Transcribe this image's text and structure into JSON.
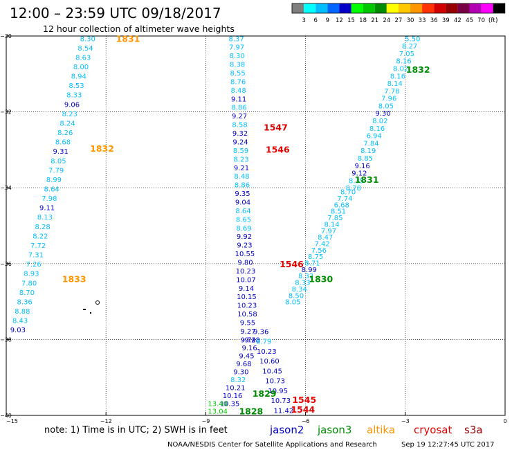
{
  "header": {
    "title": "12:00 – 23:59 UTC 09/18/2017",
    "subtitle": "12 hour collection of altimeter wave heights"
  },
  "colorbar": {
    "colors": [
      "#7f7f7f",
      "#00ffff",
      "#00bfff",
      "#0066ff",
      "#0000c8",
      "#00ff00",
      "#00c800",
      "#008c00",
      "#ffff00",
      "#ffc800",
      "#ff9600",
      "#ff3200",
      "#d20000",
      "#960000",
      "#7a0046",
      "#b400b4",
      "#ff00ff",
      "#000000"
    ],
    "labels": [
      "3",
      "6",
      "9",
      "12",
      "15",
      "18",
      "21",
      "24",
      "27",
      "30",
      "33",
      "36",
      "39",
      "42",
      "45",
      "70",
      "(ft)"
    ]
  },
  "footer": {
    "note": "note:  1) Time is in UTC; 2) SWH is in feet",
    "legend": [
      {
        "name": "jason2",
        "color": "#0000c8"
      },
      {
        "name": "jason3",
        "color": "#008c00"
      },
      {
        "name": "altika",
        "color": "#ff9600"
      },
      {
        "name": "cryosat",
        "color": "#e00000"
      },
      {
        "name": "s3a",
        "color": "#960000"
      }
    ],
    "credit": "NOAA/NESDIS Center for Satellite Applications and Research",
    "timestamp": "Sep 19 12:27:45 UTC 2017"
  },
  "chart_data": {
    "type": "scatter",
    "xlim": [
      -15,
      0
    ],
    "ylim": [
      -40,
      -30
    ],
    "x_ticks": [
      -15,
      -12,
      -9,
      -6,
      -3,
      0
    ],
    "y_ticks": [
      -30,
      -32,
      -34,
      -36,
      -38,
      -40
    ],
    "x_tick_labels": [
      "−15",
      "−12",
      "−9",
      "−6",
      "−3",
      "0"
    ],
    "y_tick_labels": [
      "−30",
      "−32",
      "−34",
      "−36",
      "−38",
      "−40"
    ],
    "grid": true,
    "value_colors": {
      "light": "#00bfff",
      "mid": "#0066ff",
      "dark": "#0000c8",
      "green": "#00c800"
    },
    "tracks": [
      {
        "name": "altika",
        "pass": "1831",
        "pass_label_pos": [
          -11.7,
          -30.06
        ],
        "pass_color": "#ff9600",
        "start": [
          -12.55,
          -30.06
        ],
        "end": [
          -14.65,
          -37.74
        ],
        "values": [
          "8.30",
          "8.54",
          "8.63",
          "8.00",
          "8.94",
          "8.53",
          "8.33",
          "9.06",
          "8.23",
          "8.24",
          "8.26",
          "8.68",
          "9.31",
          "8.05",
          "7.79",
          "8.99",
          "8.64",
          "7.98",
          "9.11",
          "8.13",
          "8.28",
          "8.22",
          "7.72",
          "7.31",
          "7.26",
          "8.93",
          "7.80",
          "8.70",
          "8.36",
          "8.88",
          "8.43",
          "9.03"
        ],
        "colors": [
          "light",
          "light",
          "light",
          "light",
          "light",
          "light",
          "light",
          "dark",
          "light",
          "light",
          "light",
          "light",
          "dark",
          "light",
          "light",
          "light",
          "light",
          "light",
          "dark",
          "light",
          "light",
          "light",
          "light",
          "light",
          "light",
          "light",
          "light",
          "light",
          "light",
          "light",
          "light",
          "dark"
        ]
      },
      {
        "name": "altika",
        "pass": "1832",
        "pass_label_pos": [
          -12.48,
          -32.96
        ],
        "pass_color": "#ff9600",
        "start": null,
        "end": null,
        "values": [],
        "colors": []
      },
      {
        "name": "altika",
        "pass": "1833",
        "pass_label_pos": [
          -13.32,
          -36.4
        ],
        "pass_color": "#ff9600",
        "start": null,
        "end": null,
        "values": [],
        "colors": []
      },
      {
        "name": "jason2",
        "pass": "",
        "start": [
          -8.08,
          -30.06
        ],
        "end": [
          -7.72,
          -38.0
        ],
        "values": [
          "8.37",
          "7.97",
          "8.30",
          "8.38",
          "8.55",
          "8.76",
          "8.48",
          "9.11",
          "8.86",
          "9.27",
          "8.58",
          "9.32",
          "9.24",
          "8.59",
          "8.23",
          "9.21",
          "8.48",
          "8.86",
          "9.35",
          "9.04",
          "8.64",
          "8.65",
          "8.69",
          "9.92",
          "9.23",
          "10.55",
          "9.80",
          "10.23",
          "10.07",
          "9.14",
          "10.15",
          "10.23",
          "10.58",
          "9.55",
          "9.27",
          "9.74"
        ],
        "colors": [
          "light",
          "light",
          "light",
          "light",
          "light",
          "light",
          "light",
          "dark",
          "light",
          "dark",
          "light",
          "dark",
          "dark",
          "light",
          "light",
          "dark",
          "light",
          "light",
          "dark",
          "dark",
          "light",
          "light",
          "light",
          "dark",
          "dark",
          "dark",
          "dark",
          "dark",
          "dark",
          "dark",
          "dark",
          "dark",
          "dark",
          "dark",
          "dark",
          "dark"
        ]
      },
      {
        "name": "jason2",
        "pass": "",
        "start": [
          -7.6,
          -38.0
        ],
        "end": [
          -8.28,
          -39.68
        ],
        "values": [
          "9.28",
          "9.16",
          "9.45",
          "9.68",
          "9.30",
          "8.32",
          "10.21",
          "10.16",
          "10.35"
        ],
        "colors": [
          "dark",
          "dark",
          "dark",
          "dark",
          "dark",
          "light",
          "dark",
          "dark",
          "dark"
        ]
      },
      {
        "name": "jason2",
        "pass": "",
        "start": [
          -7.34,
          -37.78
        ],
        "end": [
          -6.66,
          -39.86
        ],
        "values": [
          "9.36",
          "8.79",
          "10.23",
          "10.60",
          "10.45",
          "10.73",
          "10.95",
          "10.73",
          "11.42"
        ],
        "colors": [
          "dark",
          "light",
          "dark",
          "dark",
          "dark",
          "dark",
          "dark",
          "dark",
          "dark"
        ]
      },
      {
        "name": "jason2",
        "pass": "",
        "start": [
          -8.64,
          -39.88
        ],
        "end": [
          -8.64,
          -39.88
        ],
        "values": [
          "13.04"
        ],
        "colors": [
          "green"
        ]
      },
      {
        "name": "jason2",
        "pass": "",
        "start": [
          -8.64,
          -39.68
        ],
        "end": [
          -8.64,
          -39.68
        ],
        "values": [
          "13.40"
        ],
        "colors": [
          "green"
        ]
      },
      {
        "name": "jason3",
        "pass": "1832",
        "pass_label_pos": [
          -2.98,
          -30.88
        ],
        "pass_color": "#008c00",
        "start": [
          -2.78,
          -30.06
        ],
        "end": [
          -4.56,
          -34.0
        ],
        "values": [
          "5.50",
          "8.27",
          "7.05",
          "8.16",
          "8.02",
          "8.16",
          "8.14",
          "7.78",
          "7.96",
          "8.05",
          "9.30",
          "8.02",
          "8.16",
          "6.94",
          "7.84",
          "8.19",
          "8.85",
          "9.16",
          "9.12",
          "8.35",
          "8.78"
        ],
        "colors": [
          "light",
          "light",
          "light",
          "light",
          "light",
          "light",
          "light",
          "light",
          "light",
          "light",
          "dark",
          "light",
          "light",
          "light",
          "light",
          "light",
          "light",
          "dark",
          "dark",
          "light",
          "light"
        ]
      },
      {
        "name": "jason3",
        "pass": "1831",
        "pass_label_pos": [
          -4.52,
          -33.78
        ],
        "pass_color": "#008c00",
        "start": [
          -4.72,
          -34.1
        ],
        "end": [
          -6.38,
          -37.0
        ],
        "values": [
          "8.70",
          "7.74",
          "6.68",
          "8.51",
          "7.85",
          "8.14",
          "7.97",
          "8.47",
          "7.42",
          "7.56",
          "8.75",
          "8.71",
          "8.99",
          "8.32",
          "8.33",
          "8.34",
          "8.50",
          "8.05"
        ],
        "colors": [
          "light",
          "light",
          "light",
          "light",
          "light",
          "light",
          "light",
          "light",
          "light",
          "light",
          "light",
          "light",
          "dark",
          "light",
          "light",
          "light",
          "light",
          "light"
        ]
      },
      {
        "name": "jason3",
        "pass": "1830",
        "pass_label_pos": [
          -5.9,
          -36.4
        ],
        "pass_color": "#008c00",
        "start": null,
        "end": null,
        "values": [],
        "colors": []
      },
      {
        "name": "jason3",
        "pass": "1829",
        "pass_label_pos": [
          -7.6,
          -39.42
        ],
        "pass_color": "#008c00",
        "start": null,
        "end": null,
        "values": [],
        "colors": []
      },
      {
        "name": "jason3",
        "pass": "1828",
        "pass_label_pos": [
          -8.0,
          -39.88
        ],
        "pass_color": "#008c00",
        "start": null,
        "end": null,
        "values": [],
        "colors": []
      },
      {
        "name": "cryosat",
        "pass": "1547",
        "pass_label_pos": [
          -7.26,
          -32.4
        ],
        "pass_color": "#e00000",
        "start": null,
        "end": null,
        "values": [],
        "colors": []
      },
      {
        "name": "cryosat",
        "pass": "1546",
        "pass_label_pos": [
          -7.2,
          -32.98
        ],
        "pass_color": "#e00000",
        "start": null,
        "end": null,
        "values": [],
        "colors": []
      },
      {
        "name": "cryosat",
        "pass": "1546",
        "pass_label_pos": [
          -6.78,
          -36.0
        ],
        "pass_color": "#e00000",
        "start": null,
        "end": null,
        "values": [],
        "colors": []
      },
      {
        "name": "cryosat",
        "pass": "1545",
        "pass_label_pos": [
          -6.4,
          -39.58
        ],
        "pass_color": "#e00000",
        "start": null,
        "end": null,
        "values": [],
        "colors": []
      },
      {
        "name": "cryosat",
        "pass": "1544",
        "pass_label_pos": [
          -6.44,
          -39.84
        ],
        "pass_color": "#e00000",
        "start": null,
        "end": null,
        "values": [],
        "colors": []
      }
    ]
  }
}
